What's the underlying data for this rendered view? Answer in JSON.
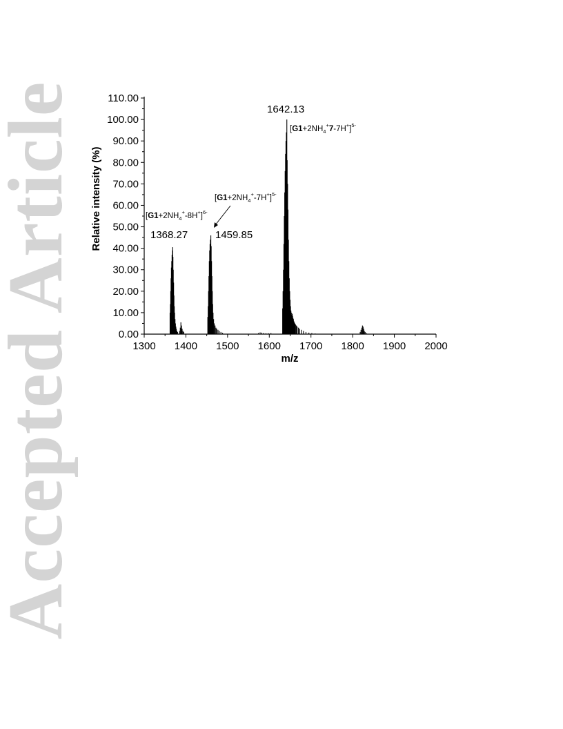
{
  "watermark": "Accepted Article",
  "chart_data": {
    "type": "bar",
    "title": "",
    "xlabel": "m/z",
    "ylabel": "Relative intensity (%)",
    "xlim": [
      1300,
      2000
    ],
    "ylim": [
      0,
      110
    ],
    "grid": false,
    "x_ticks": [
      "1300",
      "1400",
      "1500",
      "1600",
      "1700",
      "1800",
      "1900",
      "2000"
    ],
    "y_ticks": [
      "0.00",
      "10.00",
      "20.00",
      "30.00",
      "40.00",
      "50.00",
      "60.00",
      "70.00",
      "80.00",
      "90.00",
      "100.00",
      "110.00"
    ],
    "peak_labels": [
      {
        "mz": 1368.27,
        "text": "1368.27"
      },
      {
        "mz": 1459.85,
        "text": "1459.85"
      },
      {
        "mz": 1642.13,
        "text": "1642.13"
      }
    ],
    "annotations": [
      {
        "bold_prefix": "G1",
        "main": "+2NH",
        "sub": "4",
        "sup1": "+",
        "bold_mid": "",
        "rest": "-8H",
        "sup2": "+",
        "tail": "]",
        "charge": "6-"
      },
      {
        "bold_prefix": "G1",
        "main": "+2NH",
        "sub": "4",
        "sup1": "+",
        "bold_mid": "",
        "rest": "-7H",
        "sup2": "+",
        "tail": "]",
        "charge": "5-"
      },
      {
        "bold_prefix": "G1",
        "main": "+2NH",
        "sub": "4",
        "sup1": "+",
        "bold_mid": "7",
        "rest": "-7H",
        "sup2": "+",
        "tail": "]",
        "charge": "5-"
      }
    ],
    "clusters": [
      {
        "center": 1368.27,
        "lines": [
          [
            1362.0,
            10
          ],
          [
            1362.8,
            14
          ],
          [
            1363.6,
            20
          ],
          [
            1364.4,
            26
          ],
          [
            1365.2,
            31
          ],
          [
            1366.0,
            34
          ],
          [
            1366.8,
            37
          ],
          [
            1367.6,
            39
          ],
          [
            1368.27,
            40.5
          ],
          [
            1369.0,
            36
          ],
          [
            1369.8,
            30
          ],
          [
            1370.6,
            24
          ],
          [
            1371.4,
            18
          ],
          [
            1372.2,
            13
          ],
          [
            1373.0,
            10
          ],
          [
            1374.0,
            7
          ],
          [
            1375.0,
            5
          ],
          [
            1376.0,
            3.5
          ],
          [
            1377.0,
            2.5
          ],
          [
            1378.5,
            1.5
          ],
          [
            1380.0,
            1
          ]
        ]
      },
      {
        "center": 1388,
        "lines": [
          [
            1385,
            1.5
          ],
          [
            1386.5,
            3
          ],
          [
            1388.0,
            5.5
          ],
          [
            1389.5,
            4
          ],
          [
            1391,
            2.5
          ],
          [
            1393,
            1.5
          ],
          [
            1395,
            1
          ]
        ]
      },
      {
        "center": 1459.85,
        "lines": [
          [
            1452.5,
            8
          ],
          [
            1453.4,
            13
          ],
          [
            1454.3,
            20
          ],
          [
            1455.2,
            27
          ],
          [
            1456.1,
            34
          ],
          [
            1457.0,
            39
          ],
          [
            1457.9,
            42
          ],
          [
            1458.8,
            44
          ],
          [
            1459.85,
            46
          ],
          [
            1460.7,
            41
          ],
          [
            1461.6,
            34
          ],
          [
            1462.5,
            27
          ],
          [
            1463.4,
            20
          ],
          [
            1464.3,
            14
          ],
          [
            1465.2,
            10
          ],
          [
            1466.5,
            7
          ],
          [
            1468,
            5
          ],
          [
            1470,
            4
          ],
          [
            1472,
            3
          ],
          [
            1474,
            2.5
          ],
          [
            1477,
            2
          ],
          [
            1480,
            1.5
          ],
          [
            1484,
            1
          ],
          [
            1488,
            0.6
          ]
        ]
      },
      {
        "center": 1580,
        "lines": [
          [
            1574,
            0.5
          ],
          [
            1578,
            0.8
          ],
          [
            1582,
            0.7
          ],
          [
            1586,
            0.5
          ],
          [
            1592,
            0.4
          ],
          [
            1598,
            0.4
          ],
          [
            1604,
            0.5
          ]
        ]
      },
      {
        "center": 1642.13,
        "lines": [
          [
            1632.0,
            12
          ],
          [
            1633.0,
            20
          ],
          [
            1634.0,
            30
          ],
          [
            1635.0,
            42
          ],
          [
            1636.0,
            55
          ],
          [
            1637.0,
            66
          ],
          [
            1638.0,
            76
          ],
          [
            1639.0,
            84
          ],
          [
            1640.0,
            90
          ],
          [
            1641.0,
            94
          ],
          [
            1642.13,
            100
          ],
          [
            1643.0,
            81
          ],
          [
            1644.0,
            70
          ],
          [
            1645.0,
            58
          ],
          [
            1646.0,
            44
          ],
          [
            1647.0,
            34
          ],
          [
            1648.0,
            26
          ],
          [
            1649.0,
            20
          ],
          [
            1650.0,
            16
          ],
          [
            1651.0,
            13
          ],
          [
            1652.0,
            11
          ],
          [
            1653.0,
            10
          ],
          [
            1654.0,
            9
          ],
          [
            1655.0,
            9.5
          ],
          [
            1656.0,
            8.5
          ],
          [
            1657.0,
            7.5
          ],
          [
            1658.0,
            7
          ],
          [
            1659.0,
            6
          ],
          [
            1660.0,
            5.5
          ],
          [
            1661.5,
            5
          ],
          [
            1663,
            4.5
          ],
          [
            1665,
            4
          ],
          [
            1667,
            3.5
          ],
          [
            1670,
            3
          ],
          [
            1673,
            2.5
          ],
          [
            1677,
            2
          ],
          [
            1682,
            1.5
          ],
          [
            1688,
            1
          ],
          [
            1695,
            0.7
          ],
          [
            1702,
            0.5
          ],
          [
            1710,
            0.3
          ]
        ]
      },
      {
        "center": 1825,
        "lines": [
          [
            1818,
            1
          ],
          [
            1820,
            2
          ],
          [
            1822,
            3
          ],
          [
            1823.5,
            4
          ],
          [
            1825,
            3.5
          ],
          [
            1826.5,
            2.5
          ],
          [
            1828,
            1.5
          ],
          [
            1830,
            1
          ],
          [
            1833,
            0.5
          ]
        ]
      }
    ]
  }
}
